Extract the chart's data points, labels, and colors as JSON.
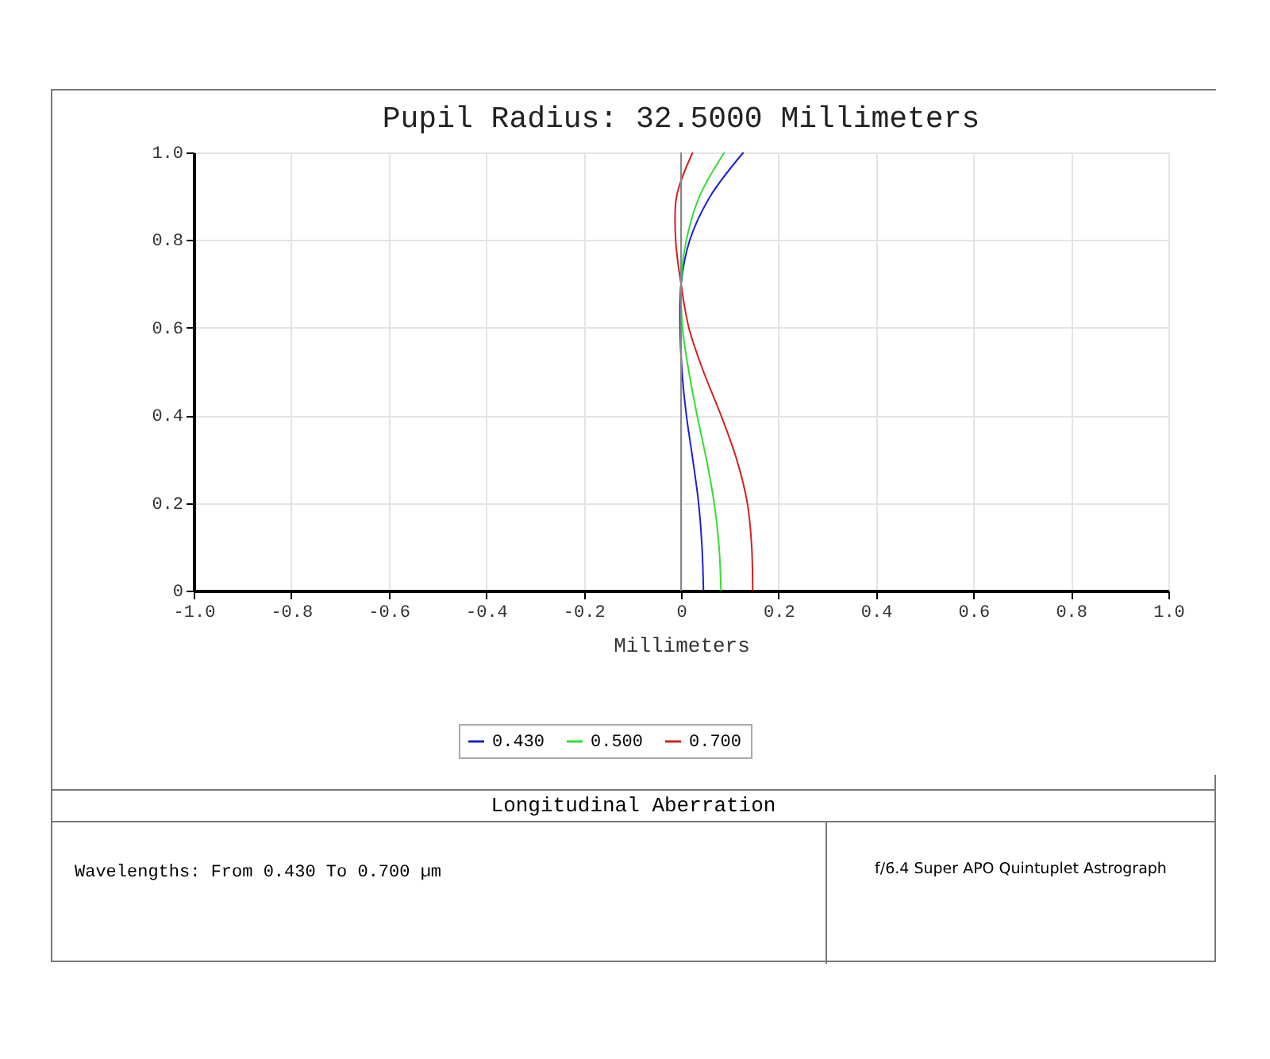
{
  "chart_data": {
    "type": "line",
    "title": "Pupil Radius: 32.5000 Millimeters",
    "xlabel": "Millimeters",
    "xlim": [
      -1,
      1
    ],
    "ylim": [
      0,
      1
    ],
    "xticks": [
      {
        "value": -1,
        "label": "-1.0"
      },
      -0.8,
      -0.6,
      -0.4,
      -0.2,
      {
        "value": 0,
        "label": "0"
      },
      0.2,
      0.4,
      0.6,
      0.8,
      {
        "value": 1,
        "label": "1.0"
      }
    ],
    "yticks": [
      {
        "value": 0,
        "label": "0"
      },
      0.2,
      0.4,
      0.6,
      0.8,
      {
        "value": 1,
        "label": "1.0"
      }
    ],
    "grid": true,
    "legend": "bottom",
    "series": [
      {
        "name": "0.430",
        "color": "#2020d0",
        "x": [
          0.046,
          0.043,
          0.036,
          0.024,
          0.011,
          0.002,
          -0.002,
          0,
          0.018,
          0.06,
          0.128
        ],
        "values": [
          0,
          0.1,
          0.2,
          0.3,
          0.4,
          0.5,
          0.6,
          0.7,
          0.8,
          0.9,
          1.0
        ]
      },
      {
        "name": "0.500",
        "color": "#33dd33",
        "x": [
          0.082,
          0.078,
          0.068,
          0.052,
          0.033,
          0.016,
          0.003,
          0,
          0.011,
          0.038,
          0.089
        ],
        "values": [
          0,
          0.1,
          0.2,
          0.3,
          0.4,
          0.5,
          0.6,
          0.7,
          0.8,
          0.9,
          1.0
        ]
      },
      {
        "name": "0.700",
        "color": "#d42020",
        "x": [
          0.147,
          0.145,
          0.136,
          0.114,
          0.082,
          0.046,
          0.016,
          0,
          -0.011,
          -0.009,
          0.024
        ],
        "values": [
          0,
          0.1,
          0.2,
          0.3,
          0.4,
          0.5,
          0.6,
          0.7,
          0.8,
          0.9,
          1.0
        ]
      }
    ],
    "ref_lines": [
      {
        "axis": "x",
        "value": 0,
        "color": "#888888"
      }
    ],
    "annotations": [
      "Longitudinal Aberration",
      "Wavelengths: From 0.430 To 0.700 µm",
      "f/6.4 Super APO Quintuplet Astrograph"
    ]
  }
}
